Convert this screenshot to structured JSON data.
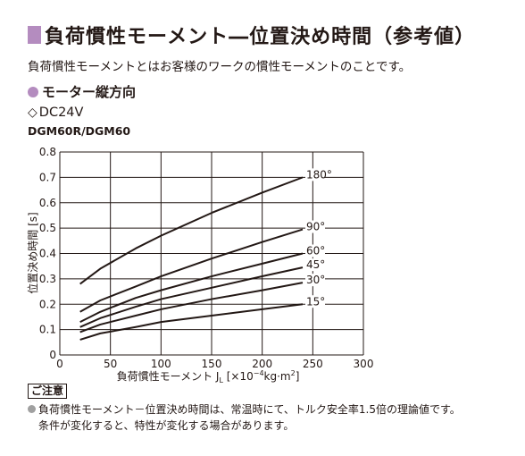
{
  "header": {
    "title": "負荷慣性モーメント―位置決め時間（参考値）",
    "description": "負荷慣性モーメントとはお客様のワークの慣性モーメントのことです。",
    "section": "モーター縦方向",
    "voltage": "DC24V",
    "model": "DGM60R/DGM60"
  },
  "colors": {
    "accent": "#b48cbf",
    "ink": "#231815",
    "bullet": "#a0a0a0"
  },
  "chart_data": {
    "type": "line",
    "xlabel": "負荷慣性モーメント J",
    "xlabel_sub": "L",
    "xlabel_unit": " [×10",
    "xlabel_exp": "−4",
    "xlabel_unit2": "kg·m",
    "xlabel_exp2": "2",
    "xlabel_end": "]",
    "ylabel": "位置決め時間 [s]",
    "xlim": [
      0,
      300
    ],
    "ylim": [
      0,
      0.8
    ],
    "x_ticks": [
      "0",
      "50",
      "100",
      "150",
      "200",
      "250",
      "300"
    ],
    "y_ticks": [
      "0",
      "0.1",
      "0.2",
      "0.3",
      "0.4",
      "0.5",
      "0.6",
      "0.7",
      "0.8"
    ],
    "grid": true,
    "series": [
      {
        "name": "180°",
        "x": [
          20,
          40,
          75,
          100,
          150,
          200,
          240
        ],
        "y": [
          0.28,
          0.34,
          0.42,
          0.47,
          0.56,
          0.64,
          0.7
        ]
      },
      {
        "name": "90°",
        "x": [
          20,
          40,
          75,
          100,
          150,
          200,
          240
        ],
        "y": [
          0.17,
          0.215,
          0.27,
          0.31,
          0.38,
          0.445,
          0.495
        ]
      },
      {
        "name": "60°",
        "x": [
          20,
          40,
          75,
          100,
          150,
          200,
          240
        ],
        "y": [
          0.13,
          0.17,
          0.225,
          0.255,
          0.31,
          0.36,
          0.4
        ]
      },
      {
        "name": "45°",
        "x": [
          20,
          40,
          75,
          100,
          150,
          200,
          240
        ],
        "y": [
          0.11,
          0.145,
          0.19,
          0.22,
          0.265,
          0.31,
          0.345
        ]
      },
      {
        "name": "30°",
        "x": [
          20,
          40,
          75,
          100,
          150,
          200,
          240
        ],
        "y": [
          0.09,
          0.12,
          0.155,
          0.18,
          0.22,
          0.255,
          0.285
        ]
      },
      {
        "name": "15°",
        "x": [
          20,
          40,
          75,
          100,
          150,
          200,
          240
        ],
        "y": [
          0.06,
          0.085,
          0.11,
          0.13,
          0.155,
          0.18,
          0.2
        ]
      }
    ]
  },
  "notes": {
    "caution_label": "ご注意",
    "line1": "負荷慣性モーメント－位置決め時間は、常温時にて、トルク安全率1.5倍の理論値です。",
    "line2": "条件が変化すると、特性が変化する場合があります。"
  }
}
